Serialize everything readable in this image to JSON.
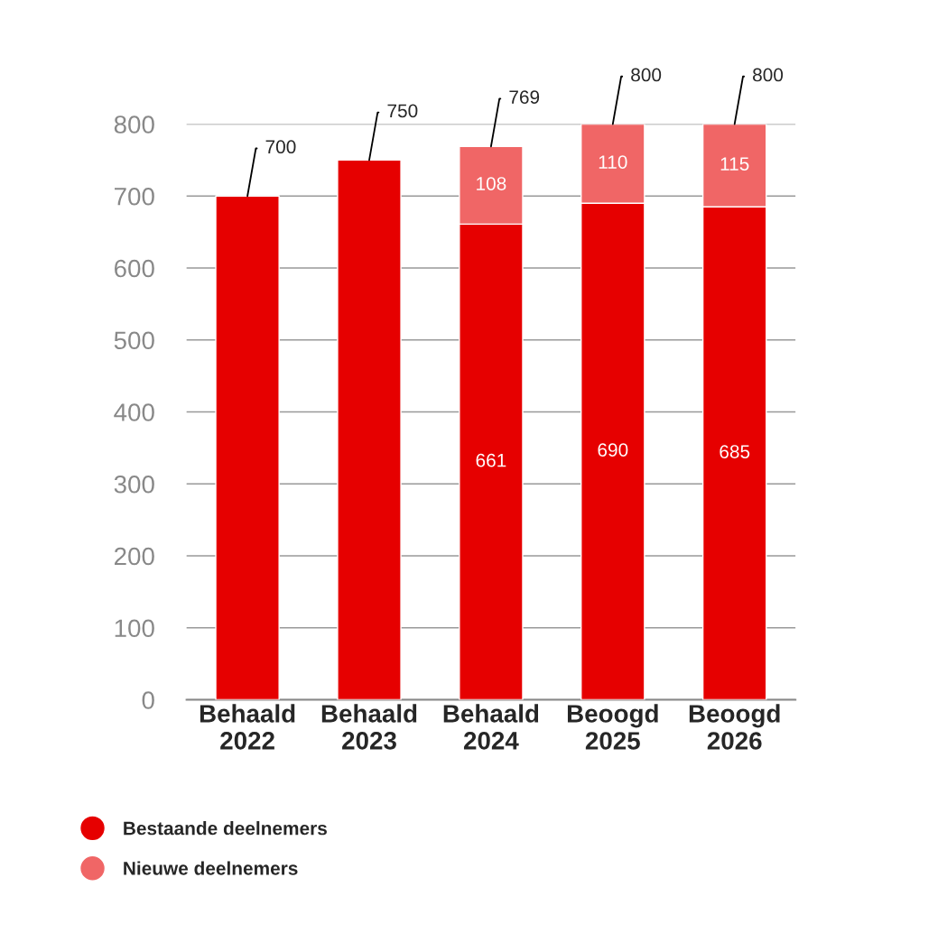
{
  "chart_data": {
    "type": "bar",
    "stacked": true,
    "categories": [
      "Behaald\n2022",
      "Behaald\n2023",
      "Behaald\n2024",
      "Beoogd\n2025",
      "Beoogd\n2026"
    ],
    "series": [
      {
        "name": "Bestaande deelnemers",
        "color": "#e60000",
        "values": [
          700,
          750,
          661,
          690,
          685
        ],
        "value_labels": [
          null,
          null,
          "661",
          "690",
          "685"
        ]
      },
      {
        "name": "Nieuwe deelnemers",
        "color": "#f06666",
        "values": [
          null,
          null,
          108,
          110,
          115
        ],
        "value_labels": [
          null,
          null,
          "108",
          "110",
          "115"
        ]
      }
    ],
    "totals": [
      "700",
      "750",
      "769",
      "800",
      "800"
    ],
    "ylim": [
      0,
      800
    ],
    "yticks": [
      0,
      100,
      200,
      300,
      400,
      500,
      600,
      700,
      800
    ],
    "grid": "y",
    "legend": "bottom left"
  }
}
